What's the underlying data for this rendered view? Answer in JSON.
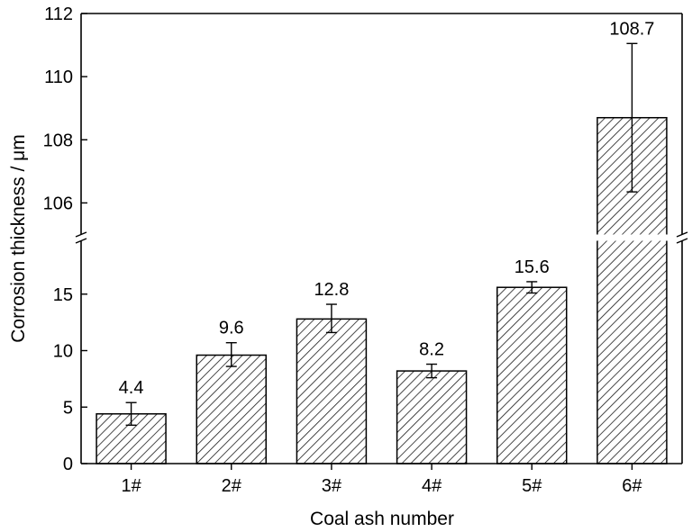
{
  "chart_data": {
    "type": "bar",
    "xlabel": "Coal ash number",
    "ylabel": "Corrosion thickness / μm",
    "categories": [
      "1#",
      "2#",
      "3#",
      "4#",
      "5#",
      "6#"
    ],
    "values": [
      4.4,
      9.6,
      12.8,
      8.2,
      15.6,
      108.7
    ],
    "value_labels": [
      "4.4",
      "9.6",
      "12.8",
      "8.2",
      "15.6",
      "108.7"
    ],
    "error_low": [
      3.4,
      8.6,
      11.6,
      7.6,
      15.1,
      106.35
    ],
    "error_high": [
      5.4,
      10.7,
      14.1,
      8.8,
      16.1,
      111.05
    ],
    "y_axis_break": true,
    "ylim_lower": [
      0,
      20
    ],
    "ylim_upper": [
      104.9,
      112
    ],
    "yticks_lower": [
      "0",
      "5",
      "10",
      "15"
    ],
    "yticks_upper": [
      "106",
      "108",
      "110",
      "112"
    ],
    "bar_fill": "hatched diagonal",
    "grid": false,
    "legend": false
  }
}
